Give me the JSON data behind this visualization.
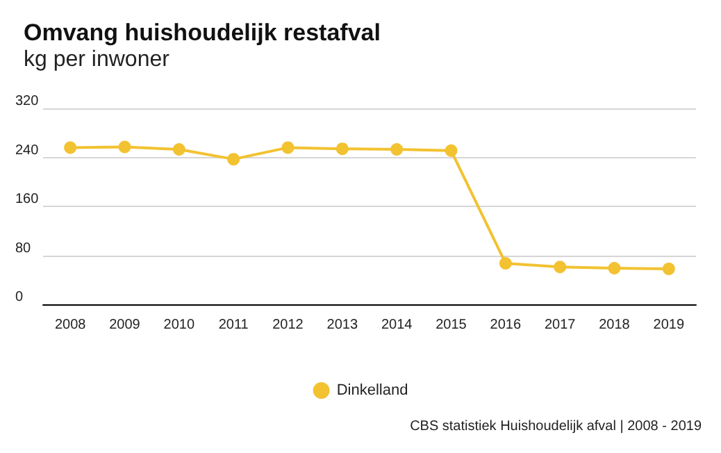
{
  "chart_data": {
    "type": "line",
    "title": "Omvang huishoudelijk restafval",
    "subtitle": "kg per inwoner",
    "categories": [
      "2008",
      "2009",
      "2010",
      "2011",
      "2012",
      "2013",
      "2014",
      "2015",
      "2016",
      "2017",
      "2018",
      "2019"
    ],
    "series": [
      {
        "name": "Dinkelland",
        "color": "#f2c231",
        "values": [
          256,
          257,
          253,
          237,
          256,
          254,
          253,
          251,
          67,
          61,
          59,
          58
        ]
      }
    ],
    "ylim": [
      0,
      320
    ],
    "yticks": [
      0,
      80,
      160,
      240,
      320
    ],
    "grid": "y",
    "legend": "bottom",
    "marker": "circle",
    "annotations": [
      "CBS statistiek Huishoudelijk afval | 2008 - 2019"
    ]
  }
}
